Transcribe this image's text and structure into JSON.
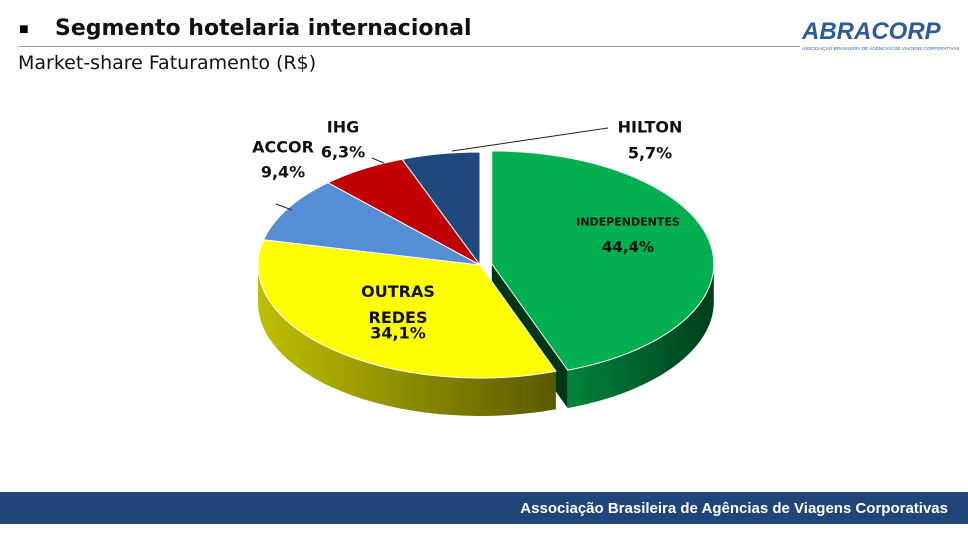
{
  "header": {
    "title": "Segmento hotelaria internacional"
  },
  "logo": {
    "name": "ABRACORP",
    "tagline": "ASSOCIAÇÃO BRASILEIRA DE AGÊNCIAS DE VIAGENS CORPORATIVAS"
  },
  "footer": {
    "text": "Associação Brasileira de Agências de Viagens Corporativas"
  },
  "chart_data": {
    "type": "pie",
    "title": "Market-share Faturamento (R$)",
    "categories": [
      "INDEPENDENTES",
      "OUTRAS REDES",
      "ACCOR",
      "IHG",
      "HILTON"
    ],
    "values": [
      44.4,
      34.1,
      9.4,
      6.3,
      5.7
    ],
    "value_labels": [
      "44,4%",
      "34,1%",
      "9,4%",
      "6,3%",
      "5,7%"
    ],
    "colors": [
      "#00b050",
      "#ffff00",
      "#558ed5",
      "#c00000",
      "#1f497d"
    ],
    "exploded_slices": [
      "INDEPENDENTES"
    ]
  }
}
